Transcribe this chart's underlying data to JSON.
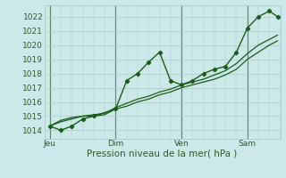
{
  "bg_color": "#cce8e8",
  "grid_color": "#aacccc",
  "line_color": "#1a5c1a",
  "marker_color": "#1a5c1a",
  "xlabel_text": "Pression niveau de la mer( hPa )",
  "yticks": [
    1014,
    1015,
    1016,
    1017,
    1018,
    1019,
    1020,
    1021,
    1022
  ],
  "ylim": [
    1013.4,
    1022.8
  ],
  "xtick_labels": [
    "Jeu",
    "Dim",
    "Ven",
    "Sam"
  ],
  "xtick_positions": [
    0,
    24,
    48,
    72
  ],
  "xlim": [
    -2,
    84
  ],
  "vline_positions": [
    0,
    24,
    48,
    72
  ],
  "vline_color": "#4a7a4a",
  "line1_x": [
    0,
    4,
    8,
    12,
    16,
    24,
    28,
    32,
    36,
    40,
    44,
    48,
    52,
    56,
    60,
    64,
    68,
    72,
    76,
    80,
    83
  ],
  "line1_y": [
    1014.3,
    1014.0,
    1014.3,
    1014.8,
    1015.0,
    1015.5,
    1017.5,
    1018.0,
    1018.8,
    1019.5,
    1017.5,
    1017.2,
    1017.5,
    1018.0,
    1018.3,
    1018.5,
    1019.5,
    1021.2,
    1022.0,
    1022.4,
    1022.0
  ],
  "line2_x": [
    0,
    4,
    8,
    12,
    16,
    20,
    24,
    28,
    32,
    36,
    40,
    44,
    48,
    52,
    56,
    60,
    64,
    68,
    72,
    76,
    80,
    83
  ],
  "line2_y": [
    1014.3,
    1014.6,
    1014.8,
    1015.0,
    1015.0,
    1015.1,
    1015.5,
    1015.7,
    1016.0,
    1016.2,
    1016.5,
    1016.7,
    1017.0,
    1017.2,
    1017.4,
    1017.6,
    1017.9,
    1018.3,
    1019.0,
    1019.5,
    1020.0,
    1020.3
  ],
  "line3_x": [
    0,
    4,
    8,
    12,
    16,
    20,
    24,
    28,
    32,
    36,
    40,
    44,
    48,
    52,
    56,
    60,
    64,
    68,
    72,
    76,
    80,
    83
  ],
  "line3_y": [
    1014.3,
    1014.7,
    1014.9,
    1015.0,
    1015.1,
    1015.2,
    1015.6,
    1015.9,
    1016.2,
    1016.4,
    1016.7,
    1016.9,
    1017.2,
    1017.4,
    1017.6,
    1017.9,
    1018.2,
    1018.7,
    1019.4,
    1020.0,
    1020.4,
    1020.7
  ],
  "xlabel_fontsize": 7.5,
  "tick_fontsize": 6.5,
  "tick_color": "#2a5a2a"
}
